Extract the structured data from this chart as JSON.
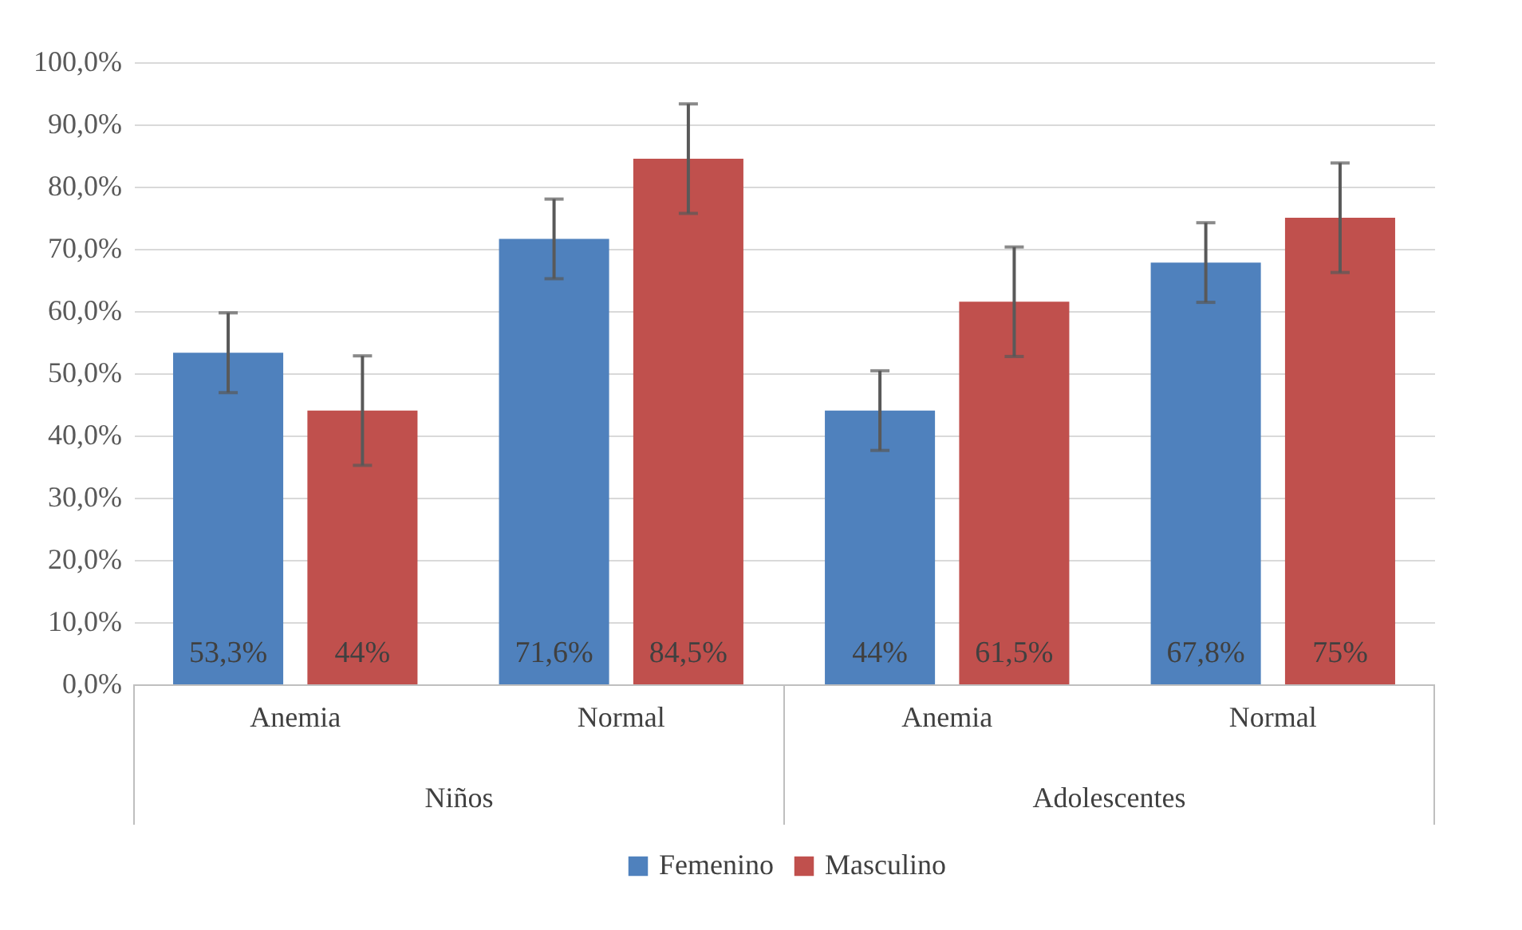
{
  "chart_data": {
    "type": "bar",
    "categories": [
      "Anemia",
      "Normal",
      "Anemia",
      "Normal"
    ],
    "series": [
      {
        "name": "Femenino",
        "color": "#4f81bd",
        "values": [
          53.3,
          71.6,
          44,
          67.8
        ],
        "errors": [
          6.4,
          6.4,
          6.4,
          6.4
        ],
        "value_labels": [
          "53,3%",
          "71,6%",
          "44%",
          "67,8%"
        ]
      },
      {
        "name": "Masculino",
        "color": "#c0504d",
        "values": [
          44,
          84.5,
          61.5,
          75
        ],
        "errors": [
          8.8,
          8.8,
          8.8,
          8.8
        ],
        "value_labels": [
          "44%",
          "84,5%",
          "61,5%",
          "75%"
        ]
      }
    ],
    "annotations": [
      "Niños",
      "Adolescentes"
    ],
    "ylim": [
      0,
      100
    ],
    "yticks": [
      {
        "value": 0,
        "label": "0,0%"
      },
      {
        "value": 10,
        "label": "10,0%"
      },
      {
        "value": 20,
        "label": "20,0%"
      },
      {
        "value": 30,
        "label": "30,0%"
      },
      {
        "value": 40,
        "label": "40,0%"
      },
      {
        "value": 50,
        "label": "50,0%"
      },
      {
        "value": 60,
        "label": "60,0%"
      },
      {
        "value": 70,
        "label": "70,0%"
      },
      {
        "value": 80,
        "label": "80,0%"
      },
      {
        "value": 90,
        "label": "90,0%"
      },
      {
        "value": 100,
        "label": "100,0%"
      }
    ],
    "grid": "y",
    "legend": "bottom"
  }
}
